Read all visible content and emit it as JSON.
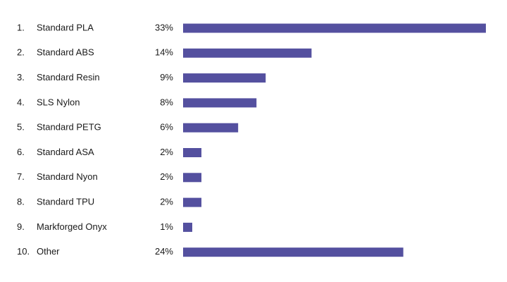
{
  "chart_data": {
    "type": "bar",
    "orientation": "horizontal",
    "ranks": [
      "1.",
      "2.",
      "3.",
      "4.",
      "5.",
      "6.",
      "7.",
      "8.",
      "9.",
      "10."
    ],
    "categories": [
      "Standard PLA",
      "Standard ABS",
      "Standard Resin",
      "SLS Nylon",
      "Standard PETG",
      "Standard ASA",
      "Standard Nyon",
      "Standard TPU",
      "Markforged Onyx",
      "Other"
    ],
    "values": [
      33,
      14,
      9,
      8,
      6,
      2,
      2,
      2,
      1,
      24
    ],
    "value_labels": [
      "33%",
      "14%",
      "9%",
      "8%",
      "6%",
      "2%",
      "2%",
      "2%",
      "1%",
      "24%"
    ],
    "color": "#54509f"
  }
}
